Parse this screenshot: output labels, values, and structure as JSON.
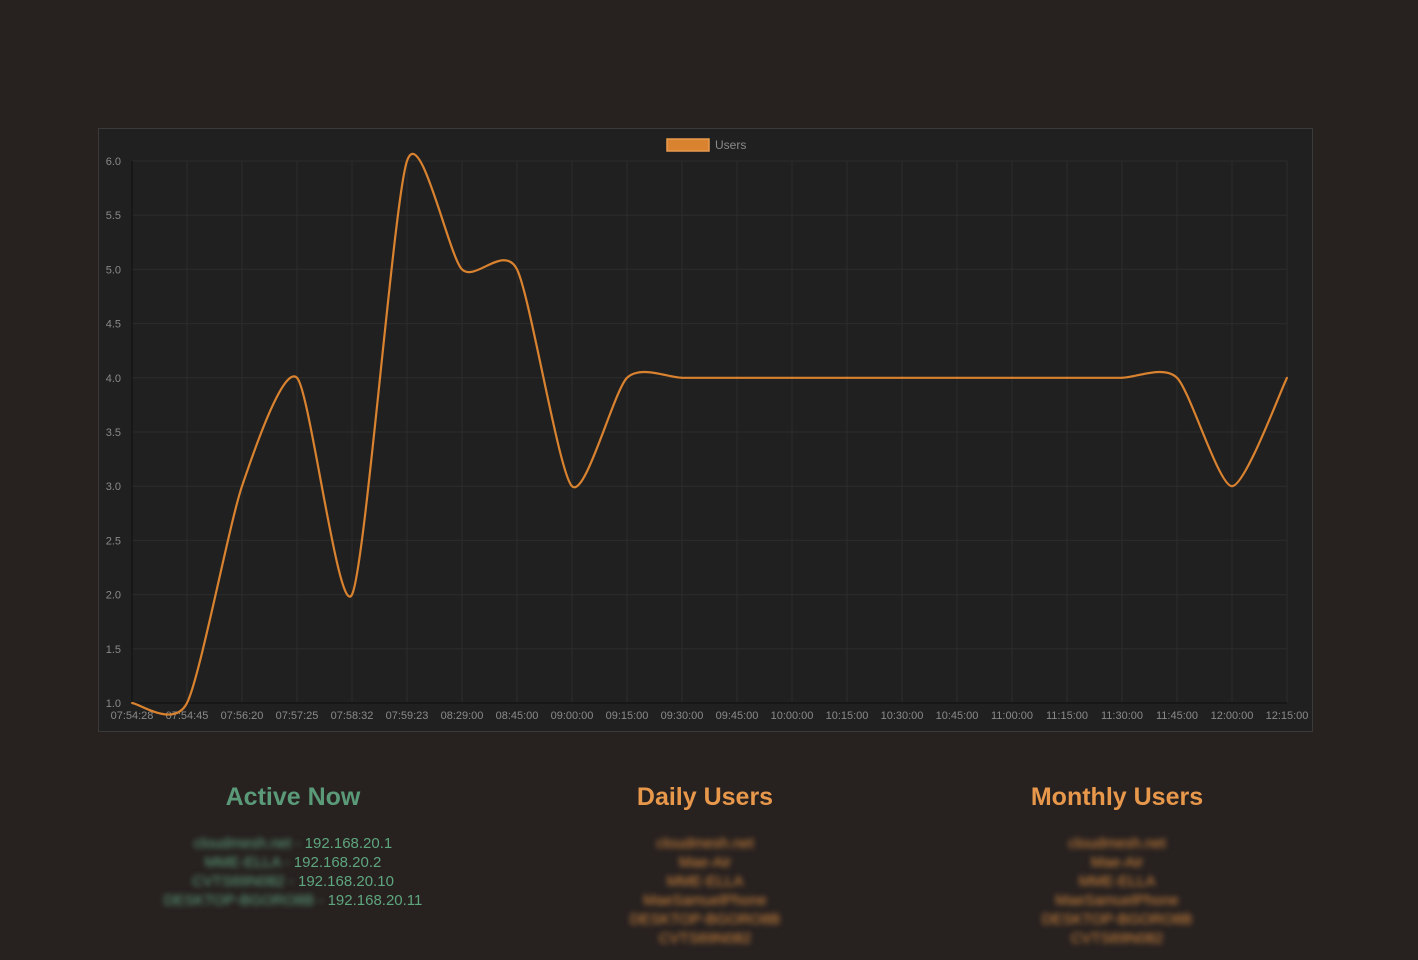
{
  "colors": {
    "background": "#272120",
    "panel": "#202020",
    "line": "#d9822f",
    "active_heading": "#5a9a78",
    "stats_heading": "#e8984b"
  },
  "chart_data": {
    "type": "line",
    "legend": {
      "position": "top",
      "entries": [
        "Users"
      ]
    },
    "grid": true,
    "x": [
      "07:54:28",
      "07:54:45",
      "07:56:20",
      "07:57:25",
      "07:58:32",
      "07:59:23",
      "08:29:00",
      "08:45:00",
      "09:00:00",
      "09:15:00",
      "09:30:00",
      "09:45:00",
      "10:00:00",
      "10:15:00",
      "10:30:00",
      "10:45:00",
      "11:00:00",
      "11:15:00",
      "11:30:00",
      "11:45:00",
      "12:00:00",
      "12:15:00"
    ],
    "series": [
      {
        "name": "Users",
        "values": [
          1,
          1,
          3,
          4,
          2,
          6,
          5,
          5,
          3,
          4,
          4,
          4,
          4,
          4,
          4,
          4,
          4,
          4,
          4,
          4,
          3,
          4
        ]
      }
    ],
    "ylim": [
      1.0,
      6.0
    ],
    "yticks": [
      "1.0",
      "1.5",
      "2.0",
      "2.5",
      "3.0",
      "3.5",
      "4.0",
      "4.5",
      "5.0",
      "5.5",
      "6.0"
    ]
  },
  "active_now": {
    "title": "Active Now",
    "items": [
      {
        "host": "cloudmesh.net",
        "ip": "192.168.20.1"
      },
      {
        "host": "MME-ELLA",
        "ip": "192.168.20.2"
      },
      {
        "host": "CVTS69N082",
        "ip": "192.168.20.10"
      },
      {
        "host": "DESKTOP-BGORO8B",
        "ip": "192.168.20.11"
      }
    ]
  },
  "daily_users": {
    "title": "Daily Users",
    "items": [
      "cloudmesh.net",
      "Mae-Air",
      "MME-ELLA",
      "MaeSamuelPhone",
      "DESKTOP-BGORO8B",
      "CVTS69N082"
    ]
  },
  "monthly_users": {
    "title": "Monthly Users",
    "items": [
      "cloudmesh.net",
      "Mae-Air",
      "MME-ELLA",
      "MaeSamuelPhone",
      "DESKTOP-BGORO8B",
      "CVTS69N082"
    ]
  }
}
